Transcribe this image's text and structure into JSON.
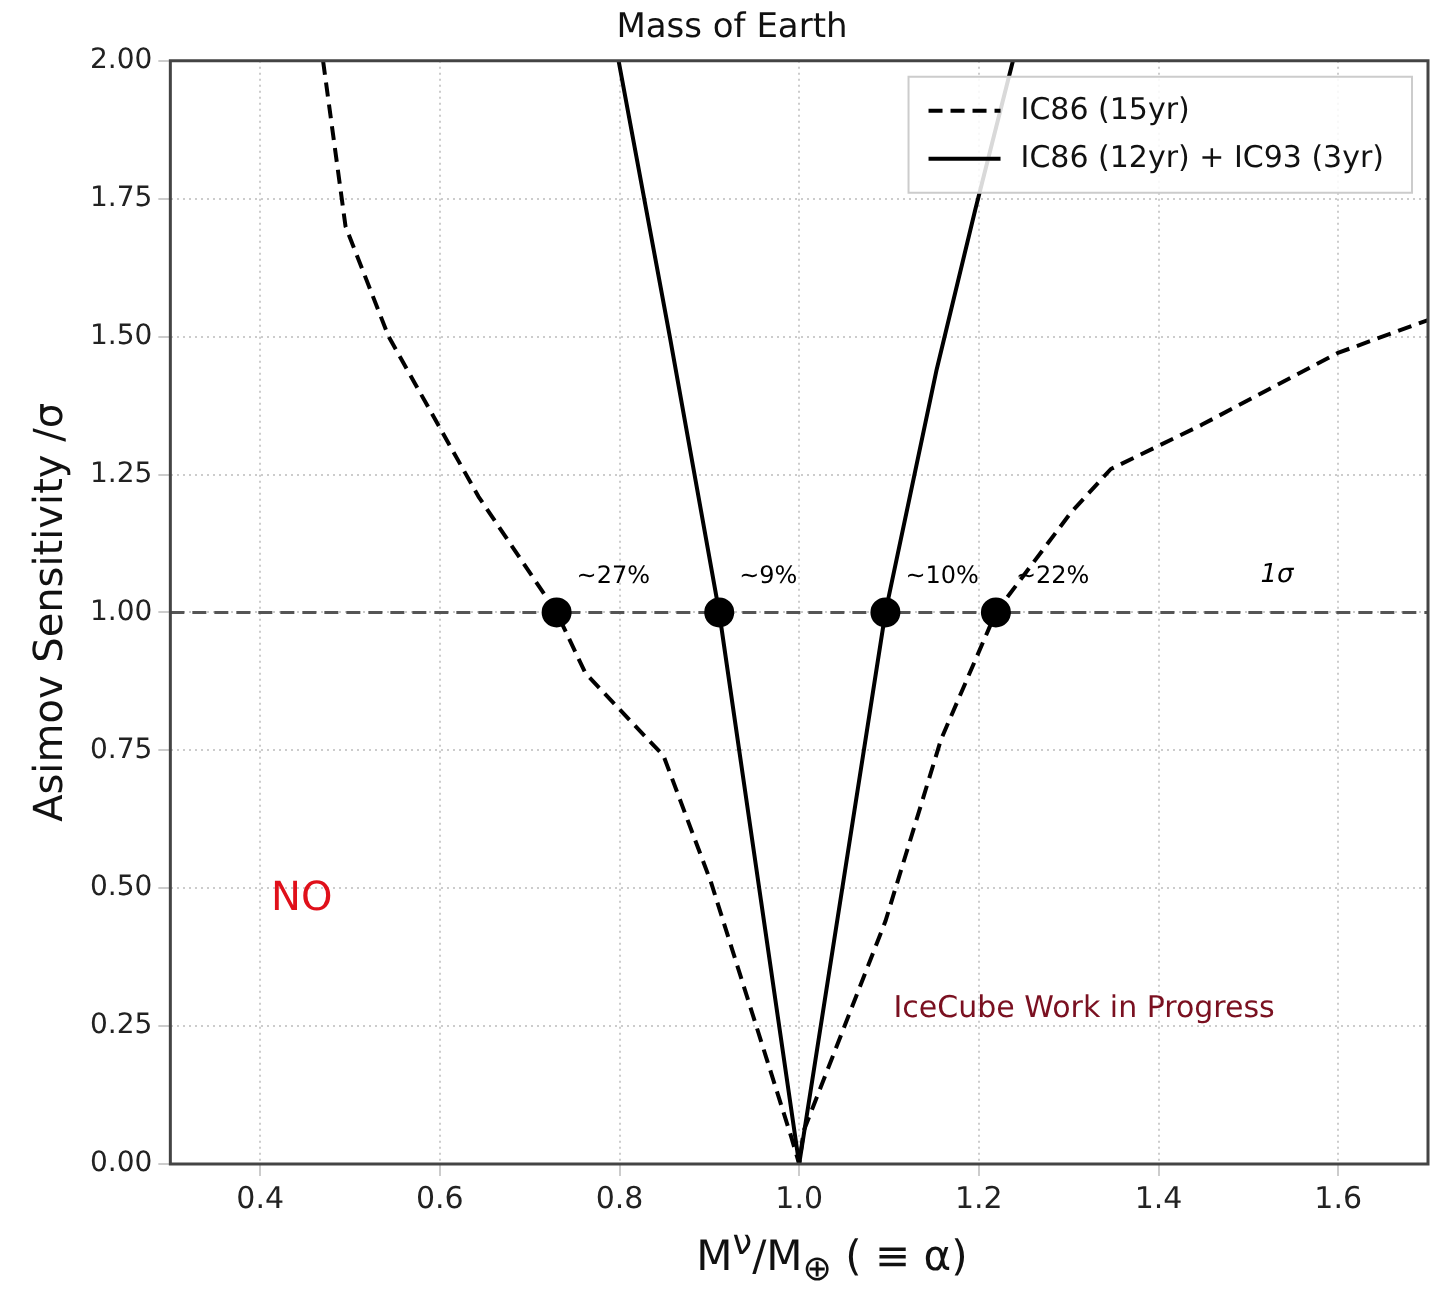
{
  "chart_data": {
    "type": "line",
    "title": "Mass of Earth",
    "xlabel": "M$^{ν}$/M$_{⊕}$ ( ≡ α)",
    "ylabel": "Asimov Sensitivity /σ",
    "xlim": [
      0.3,
      1.7
    ],
    "xticks": [
      0.4,
      0.6,
      0.8,
      {
        "value": 1,
        "label": "1.0"
      },
      1.2,
      1.4,
      1.6
    ],
    "ylim": [
      0,
      2
    ],
    "yticks": [
      {
        "value": 0,
        "label": "0.00"
      },
      {
        "value": 0.25,
        "label": "0.25"
      },
      {
        "value": 0.5,
        "label": "0.50"
      },
      {
        "value": 0.75,
        "label": "0.75"
      },
      {
        "value": 1,
        "label": "1.00"
      },
      {
        "value": 1.25,
        "label": "1.25"
      },
      {
        "value": 1.5,
        "label": "1.50"
      },
      {
        "value": 1.75,
        "label": "1.75"
      },
      {
        "value": 2,
        "label": "2.00"
      }
    ],
    "grid": true,
    "legend": "top right",
    "marker": "none",
    "series": [
      {
        "name": "IC86 (15yr)",
        "color": "#000000",
        "line_style": "dashed",
        "x": [
          0.47,
          0.495,
          0.543,
          0.643,
          0.73,
          0.762,
          0.849,
          0.902,
          0.991,
          1.0,
          1.005,
          1.096,
          1.158,
          1.219,
          1.302,
          1.347,
          1.448,
          1.599,
          1.7
        ],
        "values": [
          2.0,
          1.7,
          1.5,
          1.21,
          1.0,
          0.89,
          0.74,
          0.51,
          0.05,
          0.0,
          0.06,
          0.44,
          0.77,
          1.0,
          1.18,
          1.26,
          1.34,
          1.47,
          1.53
        ]
      },
      {
        "name": "IC86 (12yr) + IC93 (3yr)",
        "color": "#000000",
        "line_style": "solid",
        "x": [
          0.799,
          0.856,
          0.911,
          1.0,
          1.096,
          1.153,
          1.196,
          1.238
        ],
        "values": [
          2.0,
          1.5,
          1.0,
          0.0,
          1.0,
          1.44,
          1.73,
          2.0
        ]
      },
      {
        "type": "scatter",
        "marker": "circle",
        "color": "#000000",
        "x": [
          0.73,
          0.911,
          1.096,
          1.219
        ],
        "values": [
          1,
          1,
          1,
          1
        ]
      }
    ],
    "ref_lines": [
      {
        "axis": "y",
        "value": 1,
        "label": "1σ",
        "color": "#555555",
        "line_style": "dashed"
      }
    ],
    "annotations": [
      {
        "text": "~27%",
        "x": 0.73,
        "y": 1
      },
      {
        "text": "~9%",
        "x": 0.911,
        "y": 1
      },
      {
        "text": "~10%",
        "x": 1.096,
        "y": 1
      },
      {
        "text": "~22%",
        "x": 1.219,
        "y": 1
      },
      "NO",
      "IceCube Work in Progress"
    ]
  }
}
